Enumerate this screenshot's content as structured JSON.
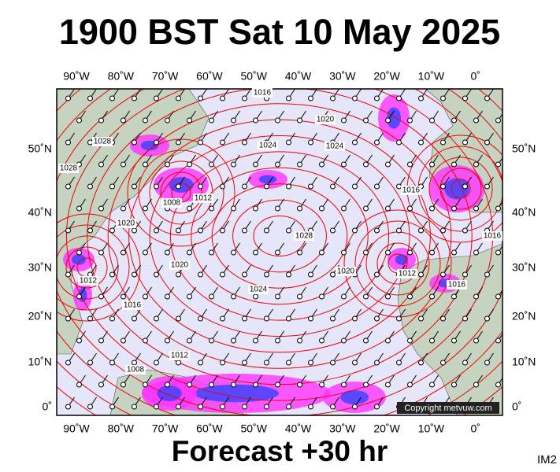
{
  "header": {
    "title": "1900 BST Sat 10 May 2025"
  },
  "map": {
    "longitude_labels": [
      "90˚W",
      "80˚W",
      "70˚W",
      "60˚W",
      "50˚W",
      "40˚W",
      "30˚W",
      "20˚W",
      "10˚W",
      "0˚"
    ],
    "latitude_labels": [
      "50˚N",
      "40˚N",
      "30˚N",
      "20˚N",
      "10˚N",
      "0˚"
    ],
    "isobar_labels": [
      "1016",
      "1020",
      "1028",
      "1028",
      "1024",
      "1024",
      "1016",
      "1008",
      "1012",
      "1020",
      "1028",
      "1020",
      "1012",
      "1024",
      "1020",
      "1012",
      "1016",
      "1016",
      "1016",
      "1012",
      "1008"
    ],
    "copyright": "Copyright metvuw.com"
  },
  "footer": {
    "caption": "Forecast +30 hr",
    "code": "IM2"
  }
}
